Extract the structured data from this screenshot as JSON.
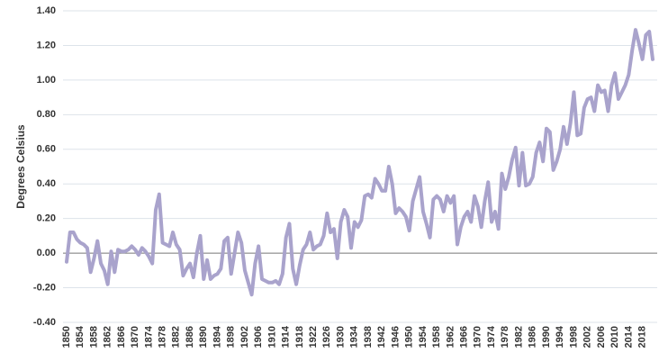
{
  "chart_data": {
    "type": "line",
    "y_label": "Degrees Celsius",
    "x": [
      1850,
      1851,
      1852,
      1853,
      1854,
      1855,
      1856,
      1857,
      1858,
      1859,
      1860,
      1861,
      1862,
      1863,
      1864,
      1865,
      1866,
      1867,
      1868,
      1869,
      1870,
      1871,
      1872,
      1873,
      1874,
      1875,
      1876,
      1877,
      1878,
      1879,
      1880,
      1881,
      1882,
      1883,
      1884,
      1885,
      1886,
      1887,
      1888,
      1889,
      1890,
      1891,
      1892,
      1893,
      1894,
      1895,
      1896,
      1897,
      1898,
      1899,
      1900,
      1901,
      1902,
      1903,
      1904,
      1905,
      1906,
      1907,
      1908,
      1909,
      1910,
      1911,
      1912,
      1913,
      1914,
      1915,
      1916,
      1917,
      1918,
      1919,
      1920,
      1921,
      1922,
      1923,
      1924,
      1925,
      1926,
      1927,
      1928,
      1929,
      1930,
      1931,
      1932,
      1933,
      1934,
      1935,
      1936,
      1937,
      1938,
      1939,
      1940,
      1941,
      1942,
      1943,
      1944,
      1945,
      1946,
      1947,
      1948,
      1949,
      1950,
      1951,
      1952,
      1953,
      1954,
      1955,
      1956,
      1957,
      1958,
      1959,
      1960,
      1961,
      1962,
      1963,
      1964,
      1965,
      1966,
      1967,
      1968,
      1969,
      1970,
      1971,
      1972,
      1973,
      1974,
      1975,
      1976,
      1977,
      1978,
      1979,
      1980,
      1981,
      1982,
      1983,
      1984,
      1985,
      1986,
      1987,
      1988,
      1989,
      1990,
      1991,
      1992,
      1993,
      1994,
      1995,
      1996,
      1997,
      1998,
      1999,
      2000,
      2001,
      2002,
      2003,
      2004,
      2005,
      2006,
      2007,
      2008,
      2009,
      2010,
      2011,
      2012,
      2013,
      2014,
      2015,
      2016,
      2017,
      2018,
      2019,
      2020,
      2021
    ],
    "series": [
      {
        "color": "#a9a3cc",
        "values": [
          -0.05,
          0.12,
          0.12,
          0.08,
          0.06,
          0.05,
          0.03,
          -0.11,
          -0.03,
          0.07,
          -0.06,
          -0.1,
          -0.18,
          0.01,
          -0.11,
          0.02,
          0.01,
          0.01,
          0.02,
          0.04,
          0.02,
          -0.01,
          0.03,
          0.01,
          -0.02,
          -0.06,
          0.25,
          0.34,
          0.06,
          0.05,
          0.04,
          0.12,
          0.05,
          0.02,
          -0.13,
          -0.09,
          -0.06,
          -0.14,
          0.0,
          0.1,
          -0.15,
          -0.04,
          -0.15,
          -0.13,
          -0.12,
          -0.09,
          0.07,
          0.09,
          -0.12,
          0.0,
          0.12,
          0.06,
          -0.1,
          -0.17,
          -0.24,
          -0.06,
          0.04,
          -0.15,
          -0.16,
          -0.17,
          -0.17,
          -0.16,
          -0.18,
          -0.12,
          0.09,
          0.17,
          -0.09,
          -0.18,
          -0.07,
          0.02,
          0.05,
          0.12,
          0.02,
          0.04,
          0.05,
          0.1,
          0.23,
          0.12,
          0.14,
          -0.03,
          0.18,
          0.25,
          0.21,
          0.03,
          0.18,
          0.15,
          0.19,
          0.33,
          0.34,
          0.32,
          0.43,
          0.4,
          0.36,
          0.36,
          0.5,
          0.4,
          0.23,
          0.26,
          0.24,
          0.21,
          0.13,
          0.3,
          0.37,
          0.44,
          0.24,
          0.17,
          0.09,
          0.31,
          0.33,
          0.31,
          0.24,
          0.33,
          0.29,
          0.33,
          0.05,
          0.15,
          0.21,
          0.24,
          0.18,
          0.33,
          0.27,
          0.15,
          0.3,
          0.41,
          0.18,
          0.24,
          0.14,
          0.46,
          0.37,
          0.44,
          0.54,
          0.61,
          0.39,
          0.58,
          0.39,
          0.4,
          0.44,
          0.58,
          0.64,
          0.53,
          0.72,
          0.7,
          0.48,
          0.53,
          0.6,
          0.73,
          0.63,
          0.75,
          0.93,
          0.68,
          0.69,
          0.84,
          0.89,
          0.9,
          0.82,
          0.97,
          0.93,
          0.94,
          0.82,
          0.97,
          1.04,
          0.89,
          0.93,
          0.97,
          1.03,
          1.17,
          1.29,
          1.21,
          1.12,
          1.26,
          1.28,
          1.12
        ]
      }
    ],
    "xlim": [
      1850,
      2021
    ],
    "xticks": [
      1850,
      1854,
      1858,
      1862,
      1866,
      1870,
      1874,
      1878,
      1882,
      1886,
      1890,
      1894,
      1898,
      1902,
      1906,
      1910,
      1914,
      1918,
      1922,
      1926,
      1930,
      1934,
      1938,
      1942,
      1946,
      1950,
      1954,
      1958,
      1962,
      1966,
      1970,
      1974,
      1978,
      1982,
      1986,
      1990,
      1994,
      1998,
      2002,
      2006,
      2010,
      2014,
      2018
    ],
    "ylim": [
      -0.4,
      1.4
    ],
    "yticks": [
      {
        "value": -0.4,
        "label": "-0.40"
      },
      {
        "value": -0.2,
        "label": "-0.20"
      },
      {
        "value": 0,
        "label": "0.00"
      },
      {
        "value": 0.2,
        "label": "0.20"
      },
      {
        "value": 0.4,
        "label": "0.40"
      },
      {
        "value": 0.6,
        "label": "0.60"
      },
      {
        "value": 0.8,
        "label": "0.80"
      },
      {
        "value": 1.0,
        "label": "1.00"
      },
      {
        "value": 1.2,
        "label": "1.20"
      },
      {
        "value": 1.4,
        "label": "1.40"
      }
    ],
    "grid": true
  }
}
